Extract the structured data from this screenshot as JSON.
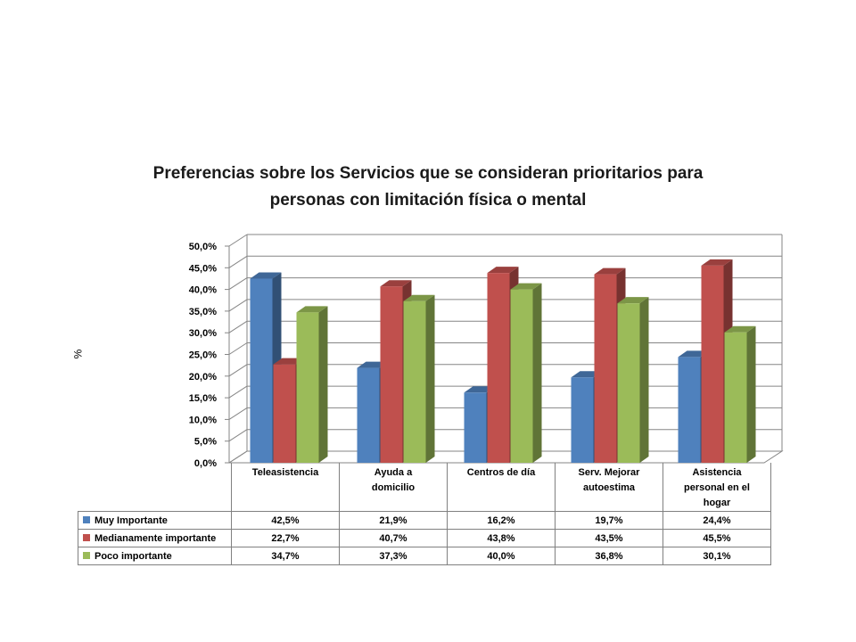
{
  "chart_data": {
    "type": "bar",
    "title": "Preferencias sobre los Servicios que se consideran prioritarios  para personas con limitación física o mental",
    "title_lines": [
      "Preferencias sobre los Servicios que se consideran prioritarios  para",
      "personas con limitación física o mental"
    ],
    "ylabel": "%",
    "xlabel": "",
    "ylim": [
      0,
      50
    ],
    "yticks": [
      "0,0%",
      "5,0%",
      "10,0%",
      "15,0%",
      "20,0%",
      "25,0%",
      "30,0%",
      "35,0%",
      "40,0%",
      "45,0%",
      "50,0%"
    ],
    "categories": [
      "Teleasistencia",
      "Ayuda a domicilio",
      "Centros de día",
      "Serv. Mejorar autoestima",
      "Asistencia personal en el hogar"
    ],
    "category_lines": [
      [
        "Teleasistencia"
      ],
      [
        "Ayuda a",
        "domicilio"
      ],
      [
        "Centros de día"
      ],
      [
        "Serv. Mejorar",
        "autoestima"
      ],
      [
        "Asistencia",
        "personal en el",
        "hogar"
      ]
    ],
    "series": [
      {
        "name": "Muy Importante",
        "color": "#4f81bd",
        "values": [
          42.5,
          21.9,
          16.2,
          19.7,
          24.4
        ],
        "labels": [
          "42,5%",
          "21,9%",
          "16,2%",
          "19,7%",
          "24,4%"
        ]
      },
      {
        "name": "Medianamente importante",
        "color": "#c0504d",
        "values": [
          22.7,
          40.7,
          43.8,
          43.5,
          45.5
        ],
        "labels": [
          "22,7%",
          "40,7%",
          "43,8%",
          "43,5%",
          "45,5%"
        ]
      },
      {
        "name": "Poco importante",
        "color": "#9bbb59",
        "values": [
          34.7,
          37.3,
          40.0,
          36.8,
          30.1
        ],
        "labels": [
          "34,7%",
          "37,3%",
          "40,0%",
          "36,8%",
          "30,1%"
        ]
      }
    ],
    "grid": true,
    "legend": "data-table",
    "style": "3d-clustered-column"
  }
}
